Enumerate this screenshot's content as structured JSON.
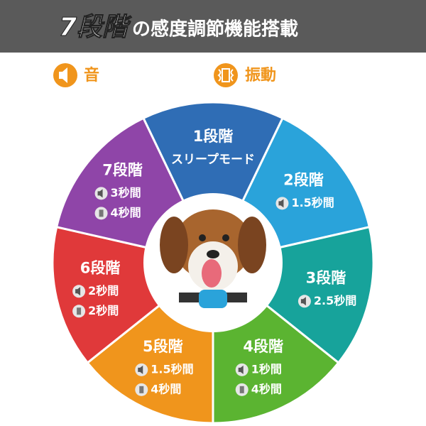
{
  "header": {
    "title_main": "7段階",
    "title_rest": "の感度調節機能搭載"
  },
  "legend": {
    "sound": "音",
    "vibration": "振動"
  },
  "segments": [
    {
      "level": "1段階",
      "mode": "スリープモード",
      "color": "#2f6db5"
    },
    {
      "level": "2段階",
      "sound": "1.5秒間",
      "color": "#2aa3da"
    },
    {
      "level": "3段階",
      "sound": "2.5秒間",
      "color": "#17a39b"
    },
    {
      "level": "4段階",
      "sound": "1秒間",
      "vibration": "4秒間",
      "color": "#5bb431"
    },
    {
      "level": "5段階",
      "sound": "1.5秒間",
      "vibration": "4秒間",
      "color": "#f0951c"
    },
    {
      "level": "6段階",
      "sound": "2秒間",
      "vibration": "2秒間",
      "color": "#e0393a"
    },
    {
      "level": "7段階",
      "sound": "3秒間",
      "vibration": "4秒間",
      "color": "#8f45a8"
    }
  ]
}
